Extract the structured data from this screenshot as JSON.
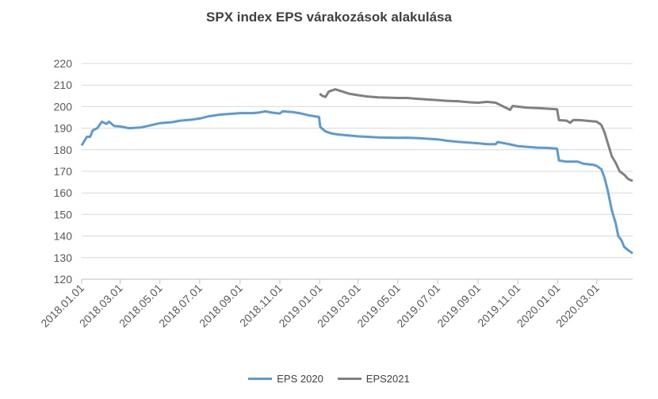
{
  "chart_data": {
    "type": "line",
    "title": "SPX index EPS várakozások  alakulása",
    "xlabel": "",
    "ylabel": "",
    "ylim": [
      120,
      220
    ],
    "yticks": [
      120,
      130,
      140,
      150,
      160,
      170,
      180,
      190,
      200,
      210,
      220
    ],
    "xlim": [
      "2018-01-01",
      "2020-04-25"
    ],
    "xticks": [
      {
        "date": "2018-01-01",
        "label": "2018.01.01"
      },
      {
        "date": "2018-03-01",
        "label": "2018.03.01"
      },
      {
        "date": "2018-05-01",
        "label": "2018.05.01"
      },
      {
        "date": "2018-07-01",
        "label": "2018.07.01"
      },
      {
        "date": "2018-09-01",
        "label": "2018.09.01"
      },
      {
        "date": "2018-11-01",
        "label": "2018.11.01"
      },
      {
        "date": "2019-01-01",
        "label": "2019.01.01"
      },
      {
        "date": "2019-03-01",
        "label": "2019.03.01"
      },
      {
        "date": "2019-05-01",
        "label": "2019.05.01"
      },
      {
        "date": "2019-07-01",
        "label": "2019.07.01"
      },
      {
        "date": "2019-09-01",
        "label": "2019.09.01"
      },
      {
        "date": "2019-11-01",
        "label": "2019.11.01"
      },
      {
        "date": "2020-01-01",
        "label": "2020.01.01"
      },
      {
        "date": "2020-03-01",
        "label": "2020.03.01"
      }
    ],
    "grid": "horizontal",
    "legend": "bottom",
    "series": [
      {
        "name": "EPS 2020",
        "color": "#5b9bd5",
        "points": [
          [
            "2018-01-01",
            182
          ],
          [
            "2018-01-05",
            184
          ],
          [
            "2018-01-09",
            186
          ],
          [
            "2018-01-14",
            186
          ],
          [
            "2018-01-18",
            189
          ],
          [
            "2018-01-25",
            190
          ],
          [
            "2018-02-01",
            193
          ],
          [
            "2018-02-08",
            192
          ],
          [
            "2018-02-12",
            193
          ],
          [
            "2018-02-20",
            191
          ],
          [
            "2018-03-01",
            190.8
          ],
          [
            "2018-03-15",
            190
          ],
          [
            "2018-04-01",
            190.3
          ],
          [
            "2018-04-15",
            191.2
          ],
          [
            "2018-05-01",
            192.3
          ],
          [
            "2018-05-20",
            192.8
          ],
          [
            "2018-06-01",
            193.5
          ],
          [
            "2018-06-20",
            194
          ],
          [
            "2018-07-01",
            194.5
          ],
          [
            "2018-07-15",
            195.5
          ],
          [
            "2018-08-01",
            196.3
          ],
          [
            "2018-08-20",
            196.7
          ],
          [
            "2018-09-01",
            197
          ],
          [
            "2018-09-20",
            197
          ],
          [
            "2018-10-01",
            197.3
          ],
          [
            "2018-10-10",
            197.8
          ],
          [
            "2018-10-20",
            197.2
          ],
          [
            "2018-11-01",
            196.8
          ],
          [
            "2018-11-05",
            197.8
          ],
          [
            "2018-11-20",
            197.5
          ],
          [
            "2018-12-01",
            197
          ],
          [
            "2018-12-15",
            196
          ],
          [
            "2018-12-31",
            195.2
          ],
          [
            "2019-01-02",
            190.5
          ],
          [
            "2019-01-10",
            188.5
          ],
          [
            "2019-01-20",
            187.5
          ],
          [
            "2019-02-01",
            187
          ],
          [
            "2019-03-01",
            186.2
          ],
          [
            "2019-04-01",
            185.7
          ],
          [
            "2019-05-01",
            185.5
          ],
          [
            "2019-05-15",
            185.6
          ],
          [
            "2019-06-01",
            185.4
          ],
          [
            "2019-07-01",
            184.8
          ],
          [
            "2019-07-15",
            184.2
          ],
          [
            "2019-08-01",
            183.7
          ],
          [
            "2019-09-01",
            183
          ],
          [
            "2019-09-15",
            182.6
          ],
          [
            "2019-09-28",
            182.6
          ],
          [
            "2019-10-01",
            183.6
          ],
          [
            "2019-10-20",
            182.5
          ],
          [
            "2019-11-01",
            181.7
          ],
          [
            "2019-12-01",
            181
          ],
          [
            "2019-12-20",
            180.8
          ],
          [
            "2019-12-31",
            180.5
          ],
          [
            "2020-01-03",
            175
          ],
          [
            "2020-01-15",
            174.5
          ],
          [
            "2020-02-01",
            174.5
          ],
          [
            "2020-02-10",
            173.5
          ],
          [
            "2020-02-25",
            173
          ],
          [
            "2020-03-01",
            172.5
          ],
          [
            "2020-03-08",
            171
          ],
          [
            "2020-03-13",
            167
          ],
          [
            "2020-03-18",
            161
          ],
          [
            "2020-03-24",
            152
          ],
          [
            "2020-03-30",
            146
          ],
          [
            "2020-04-03",
            140
          ],
          [
            "2020-04-08",
            138
          ],
          [
            "2020-04-12",
            135
          ],
          [
            "2020-04-18",
            133.5
          ],
          [
            "2020-04-25",
            132
          ]
        ]
      },
      {
        "name": "EPS2021",
        "color": "#808080",
        "points": [
          [
            "2019-01-01",
            206
          ],
          [
            "2019-01-05",
            205
          ],
          [
            "2019-01-10",
            204.5
          ],
          [
            "2019-01-15",
            207
          ],
          [
            "2019-01-25",
            208
          ],
          [
            "2019-02-05",
            207
          ],
          [
            "2019-02-15",
            206
          ],
          [
            "2019-03-01",
            205.3
          ],
          [
            "2019-03-15",
            204.7
          ],
          [
            "2019-04-01",
            204.3
          ],
          [
            "2019-05-01",
            204
          ],
          [
            "2019-05-15",
            204
          ],
          [
            "2019-06-01",
            203.6
          ],
          [
            "2019-07-01",
            203
          ],
          [
            "2019-07-15",
            202.7
          ],
          [
            "2019-08-01",
            202.5
          ],
          [
            "2019-08-20",
            202
          ],
          [
            "2019-09-01",
            201.8
          ],
          [
            "2019-09-15",
            202.2
          ],
          [
            "2019-09-28",
            201.8
          ],
          [
            "2019-10-10",
            200
          ],
          [
            "2019-10-20",
            198.5
          ],
          [
            "2019-10-24",
            200.3
          ],
          [
            "2019-11-01",
            200
          ],
          [
            "2019-11-15",
            199.5
          ],
          [
            "2019-12-01",
            199.3
          ],
          [
            "2019-12-31",
            198.8
          ],
          [
            "2020-01-03",
            193.7
          ],
          [
            "2020-01-15",
            193.5
          ],
          [
            "2020-01-20",
            192.5
          ],
          [
            "2020-01-25",
            193.8
          ],
          [
            "2020-02-05",
            193.7
          ],
          [
            "2020-02-20",
            193.3
          ],
          [
            "2020-03-01",
            193
          ],
          [
            "2020-03-08",
            191.5
          ],
          [
            "2020-03-13",
            188
          ],
          [
            "2020-03-18",
            183
          ],
          [
            "2020-03-24",
            177
          ],
          [
            "2020-03-30",
            174
          ],
          [
            "2020-04-05",
            170
          ],
          [
            "2020-04-12",
            168.5
          ],
          [
            "2020-04-18",
            166.5
          ],
          [
            "2020-04-25",
            165.5
          ]
        ]
      }
    ]
  }
}
